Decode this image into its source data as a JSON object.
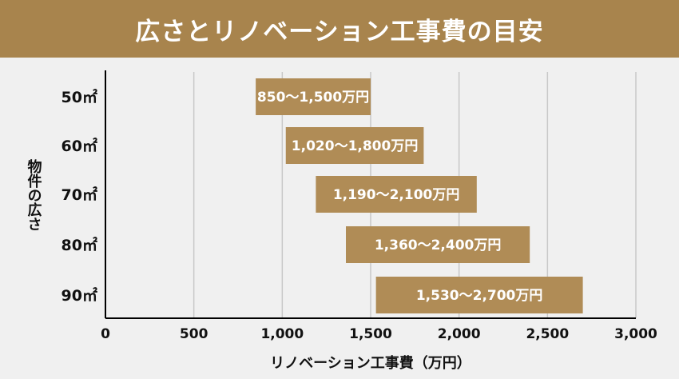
{
  "chart_data": {
    "type": "bar",
    "orientation": "horizontal",
    "title": "広さとリノベーション工事費の目安",
    "xlabel": "リノベーション工事費（万円）",
    "ylabel": "物件の広さ",
    "categories": [
      "50㎡",
      "60㎡",
      "70㎡",
      "80㎡",
      "90㎡"
    ],
    "ranges": [
      {
        "low": 850,
        "high": 1500,
        "label": "850〜1,500万円"
      },
      {
        "low": 1020,
        "high": 1800,
        "label": "1,020〜1,800万円"
      },
      {
        "low": 1190,
        "high": 2100,
        "label": "1,190〜2,100万円"
      },
      {
        "low": 1360,
        "high": 2400,
        "label": "1,360〜2,400万円"
      },
      {
        "low": 1530,
        "high": 2700,
        "label": "1,530〜2,700万円"
      }
    ],
    "xticks": [
      {
        "value": 0,
        "label": "0"
      },
      {
        "value": 500,
        "label": "500"
      },
      {
        "value": 1000,
        "label": "1,000"
      },
      {
        "value": 1500,
        "label": "1,500"
      },
      {
        "value": 2000,
        "label": "2,000"
      },
      {
        "value": 2500,
        "label": "2,500"
      },
      {
        "value": 3000,
        "label": "3,000"
      }
    ],
    "xlim": [
      0,
      3000
    ],
    "grid": true,
    "legend": "none",
    "colors": {
      "bar": "#b08c56",
      "title_background": "#a8844d",
      "title_text": "#ffffff",
      "bar_text": "#ffffff",
      "grid": "#c8c8c8",
      "axis": "#000000",
      "background": "#f0f0f0"
    }
  }
}
